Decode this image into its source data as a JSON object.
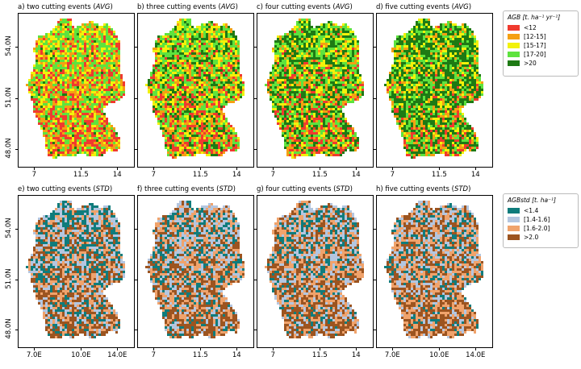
{
  "figure": {
    "top_row": {
      "panels": [
        {
          "title": "a) two cutting events",
          "stat": "AVG"
        },
        {
          "title": "b) three cutting events",
          "stat": "AVG"
        },
        {
          "title": "c) four cutting events",
          "stat": "AVG"
        },
        {
          "title": "d) five cutting events",
          "stat": "AVG"
        }
      ],
      "xticks": [
        "7",
        "11.5",
        "14"
      ],
      "yticks": [
        "54.0N",
        "51.0N",
        "48.0N"
      ],
      "legend": {
        "title": "AGB [t. ha⁻¹ yr⁻¹]",
        "items": [
          {
            "label": "<12",
            "color": "#f03a2e"
          },
          {
            "label": "[12-15]",
            "color": "#f5a012"
          },
          {
            "label": "[15-17]",
            "color": "#f2f20a"
          },
          {
            "label": "[17-20]",
            "color": "#5ee33e"
          },
          {
            "label": ">20",
            "color": "#1e7a14"
          }
        ]
      }
    },
    "bottom_row": {
      "panels": [
        {
          "title": "e) two cutting events",
          "stat": "STD"
        },
        {
          "title": "f) three cutting events",
          "stat": "STD"
        },
        {
          "title": "g) four cutting events",
          "stat": "STD"
        },
        {
          "title": "h) five cutting events",
          "stat": "STD"
        }
      ],
      "xticks_deg": [
        "7.0E",
        "10.0E",
        "14.0E"
      ],
      "xticks_plain": [
        "7",
        "11.5",
        "14"
      ],
      "yticks": [
        "54.0N",
        "51.0N",
        "48.0N"
      ],
      "legend": {
        "title": "AGBstd [t. ha⁻¹]",
        "items": [
          {
            "label": "<1.4",
            "color": "#0f7c7c"
          },
          {
            "label": "[1.4-1.6]",
            "color": "#b4c6e0"
          },
          {
            "label": "[1.6-2.0]",
            "color": "#f0a36c"
          },
          {
            "label": ">2.0",
            "color": "#9c5420"
          }
        ]
      }
    }
  }
}
